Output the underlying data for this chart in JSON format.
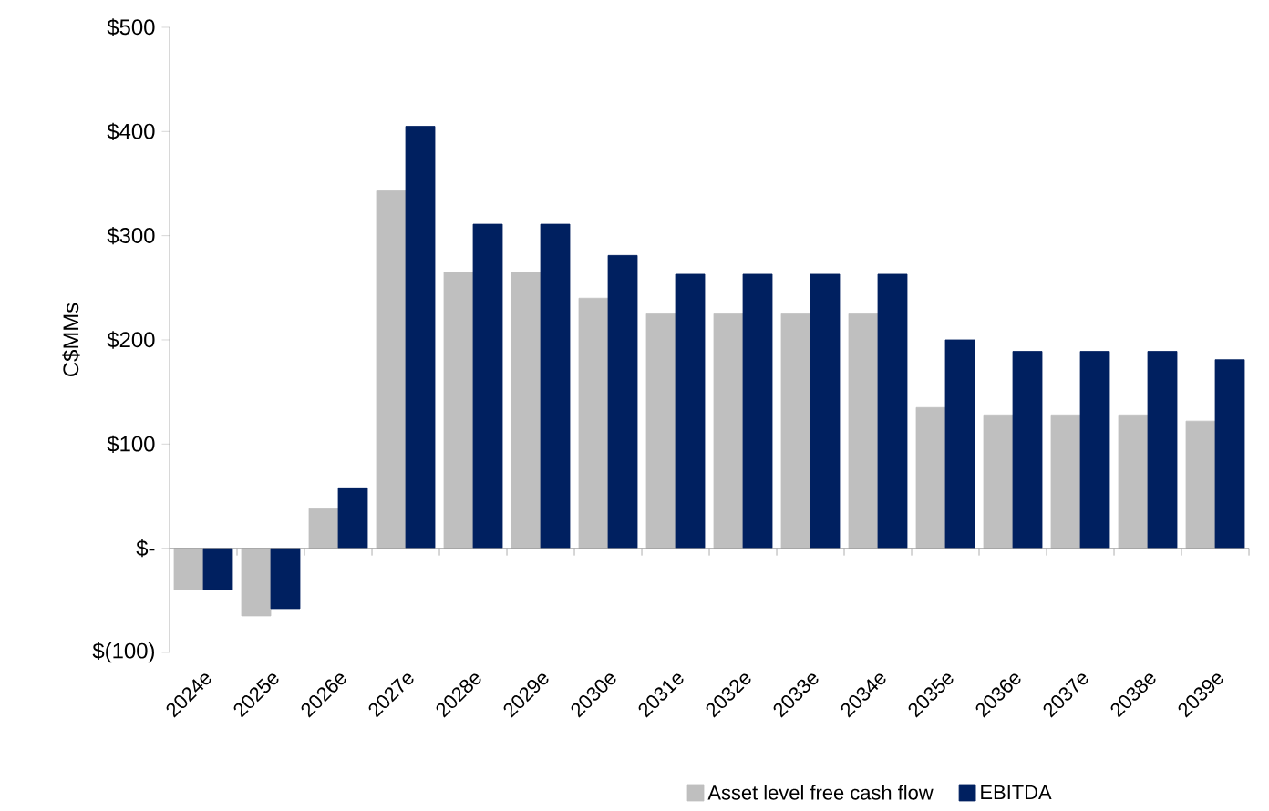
{
  "chart_data": {
    "type": "bar",
    "ylabel": "C$MMs",
    "categories": [
      "2024e",
      "2025e",
      "2026e",
      "2027e",
      "2028e",
      "2029e",
      "2030e",
      "2031e",
      "2032e",
      "2033e",
      "2034e",
      "2035e",
      "2036e",
      "2037e",
      "2038e",
      "2039e"
    ],
    "series": [
      {
        "name": "Asset level free cash flow",
        "color": "#bfbfbf",
        "values": [
          -40,
          -65,
          38,
          343,
          265,
          265,
          240,
          225,
          225,
          225,
          225,
          135,
          128,
          128,
          128,
          122
        ]
      },
      {
        "name": "EBITDA",
        "color": "#002060",
        "values": [
          -40,
          -58,
          58,
          405,
          311,
          311,
          281,
          263,
          263,
          263,
          263,
          200,
          189,
          189,
          189,
          181
        ]
      }
    ],
    "ylim": [
      -100,
      500
    ],
    "yticks": [
      {
        "value": -100,
        "label": "$(100)"
      },
      {
        "value": 0,
        "label": "$-"
      },
      {
        "value": 100,
        "label": "$100"
      },
      {
        "value": 200,
        "label": "$200"
      },
      {
        "value": 300,
        "label": "$300"
      },
      {
        "value": 400,
        "label": "$400"
      },
      {
        "value": 500,
        "label": "$500"
      }
    ],
    "legend": "bottom"
  }
}
